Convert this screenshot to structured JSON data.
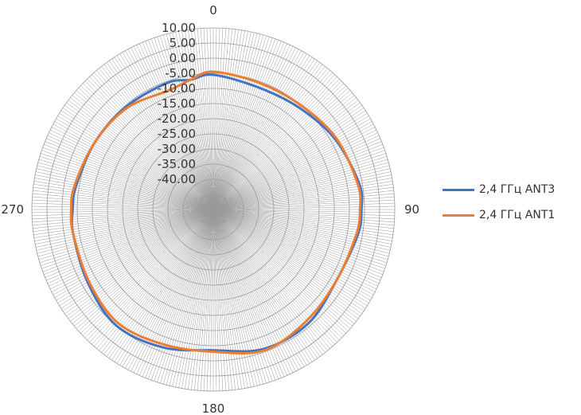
{
  "chart_data": {
    "type": "polar-line",
    "title": "",
    "angle_labels": [
      "0",
      "90",
      "180",
      "270"
    ],
    "radial_ticks": [
      "10.00",
      "5.00",
      "0.00",
      "-5.00",
      "-10.00",
      "-15.00",
      "-20.00",
      "-25.00",
      "-30.00",
      "-35.00",
      "-40.00"
    ],
    "r_range": [
      -50,
      10
    ],
    "radial_step": 5,
    "angle_step_deg": 1,
    "angle_unit": "degrees",
    "grid": true,
    "legend_position": "right",
    "series": [
      {
        "name": "2,4 ГГц ANT3",
        "color": "#4472C4",
        "angles": [
          0,
          20,
          40,
          60,
          80,
          90,
          100,
          120,
          140,
          160,
          180,
          200,
          220,
          240,
          260,
          270,
          280,
          300,
          320,
          340,
          350
        ],
        "values": [
          -5.5,
          -7.0,
          -6.0,
          -3.5,
          -1.0,
          -1.0,
          -1.5,
          -3.0,
          -1.0,
          -1.0,
          -3.5,
          -1.5,
          0.0,
          -2.0,
          -3.0,
          -3.5,
          -4.0,
          -5.0,
          -5.5,
          -5.5,
          -6.5
        ]
      },
      {
        "name": "2,4 ГГц ANT1",
        "color": "#ED7D31",
        "angles": [
          0,
          20,
          40,
          60,
          80,
          90,
          100,
          120,
          140,
          160,
          180,
          200,
          220,
          240,
          260,
          270,
          280,
          300,
          320,
          340,
          350
        ],
        "values": [
          -4.5,
          -5.5,
          -5.0,
          -3.0,
          -1.5,
          -1.5,
          -2.0,
          -3.0,
          -2.0,
          -0.5,
          -3.0,
          -2.5,
          -1.0,
          -2.5,
          -3.0,
          -3.0,
          -3.5,
          -5.0,
          -6.0,
          -8.0,
          -6.5
        ]
      }
    ]
  }
}
